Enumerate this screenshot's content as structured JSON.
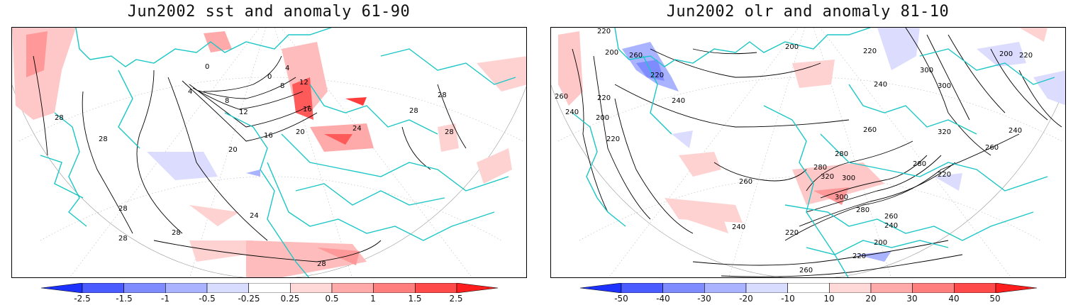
{
  "panels": [
    {
      "title": "Jun2002 sst and anomaly 61-90",
      "colorbar": {
        "ticks": [
          "-2.5",
          "-1.5",
          "-1",
          "-0.5",
          "-0.25",
          "0.25",
          "0.5",
          "1",
          "1.5",
          "2.5"
        ],
        "colors": [
          "#1e32ff",
          "#4a5cff",
          "#7f8cff",
          "#aab3ff",
          "#d8dcff",
          "#ffffff",
          "#ffd8d8",
          "#ffaaaa",
          "#ff7f7f",
          "#ff4a4a",
          "#ff1e1e"
        ]
      },
      "contour_labels": [
        "28",
        "28",
        "28",
        "28",
        "28",
        "28",
        "24",
        "20",
        "16",
        "12",
        "8",
        "4",
        "0",
        "8",
        "12",
        "16",
        "20",
        "24",
        "0",
        "4",
        "28",
        "28",
        "28"
      ]
    },
    {
      "title": "Jun2002 olr and anomaly 81-10",
      "colorbar": {
        "ticks": [
          "-50",
          "-40",
          "-30",
          "-20",
          "-10",
          "10",
          "20",
          "30",
          "40",
          "50"
        ],
        "colors": [
          "#1e32ff",
          "#4a5cff",
          "#7f8cff",
          "#aab3ff",
          "#d8dcff",
          "#ffffff",
          "#ffd8d8",
          "#ffaaaa",
          "#ff7f7f",
          "#ff4a4a",
          "#ff1e1e"
        ]
      },
      "contour_labels": [
        "220",
        "200",
        "260",
        "220",
        "260",
        "240",
        "220",
        "200",
        "220",
        "240",
        "280",
        "300",
        "320",
        "300",
        "280",
        "260",
        "240",
        "220",
        "200",
        "260",
        "240",
        "220",
        "260",
        "280",
        "300",
        "320",
        "240",
        "260",
        "280",
        "220",
        "200",
        "220",
        "240",
        "260",
        "200",
        "220",
        "300"
      ]
    }
  ]
}
